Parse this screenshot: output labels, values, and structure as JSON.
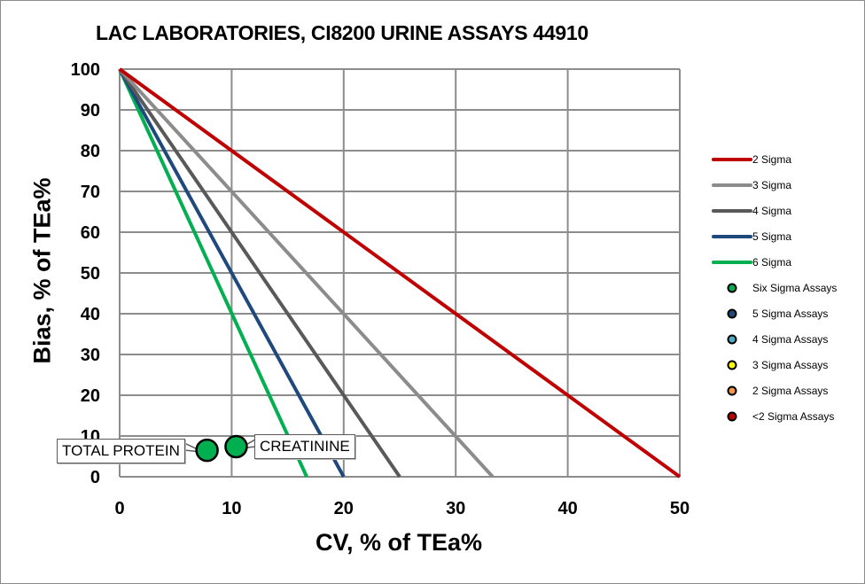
{
  "chart_data": {
    "type": "line",
    "title": "LAC LABORATORIES, CI8200 URINE ASSAYS 44910",
    "xlabel": "CV, % of TEa%",
    "ylabel": "Bias, % of TEa%",
    "xlim": [
      0,
      50
    ],
    "ylim": [
      0,
      100
    ],
    "x_ticks": [
      0,
      10,
      20,
      30,
      40,
      50
    ],
    "y_ticks": [
      0,
      10,
      20,
      30,
      40,
      50,
      60,
      70,
      80,
      90,
      100
    ],
    "grid": true,
    "legend_position": "right",
    "series": [
      {
        "name": "2 Sigma",
        "color": "#c00000",
        "points": [
          [
            0,
            100
          ],
          [
            50,
            0
          ]
        ]
      },
      {
        "name": "3 Sigma",
        "color": "#8c8c8c",
        "points": [
          [
            0,
            100
          ],
          [
            33.3,
            0
          ]
        ]
      },
      {
        "name": "4 Sigma",
        "color": "#595959",
        "points": [
          [
            0,
            100
          ],
          [
            25,
            0
          ]
        ]
      },
      {
        "name": "5 Sigma",
        "color": "#1f497d",
        "points": [
          [
            0,
            100
          ],
          [
            20,
            0
          ]
        ]
      },
      {
        "name": "6 Sigma",
        "color": "#00b050",
        "points": [
          [
            0,
            100
          ],
          [
            16.7,
            0
          ]
        ]
      }
    ],
    "marker_legend": [
      {
        "name": "Six Sigma Assays",
        "color": "#00b050"
      },
      {
        "name": "5 Sigma Assays",
        "color": "#1f497d"
      },
      {
        "name": "4 Sigma Assays",
        "color": "#4bacc6"
      },
      {
        "name": "3 Sigma Assays",
        "color": "#ffff00"
      },
      {
        "name": "2 Sigma Assays",
        "color": "#f79646"
      },
      {
        "name": "<2 Sigma Assays",
        "color": "#c00000"
      }
    ],
    "assays": [
      {
        "name": "TOTAL PROTEIN",
        "cv": 7.8,
        "bias": 6.5,
        "category": "Six Sigma Assays",
        "color": "#00b050"
      },
      {
        "name": "CREATININE",
        "cv": 10.4,
        "bias": 7.4,
        "category": "Six Sigma Assays",
        "color": "#00b050"
      }
    ]
  },
  "labels": {
    "title": "LAC LABORATORIES, CI8200 URINE ASSAYS 44910",
    "xlabel": "CV, % of TEa%",
    "ylabel": "Bias, % of TEa%",
    "callout_total_protein": "TOTAL PROTEIN",
    "callout_creatinine": "CREATININE"
  }
}
